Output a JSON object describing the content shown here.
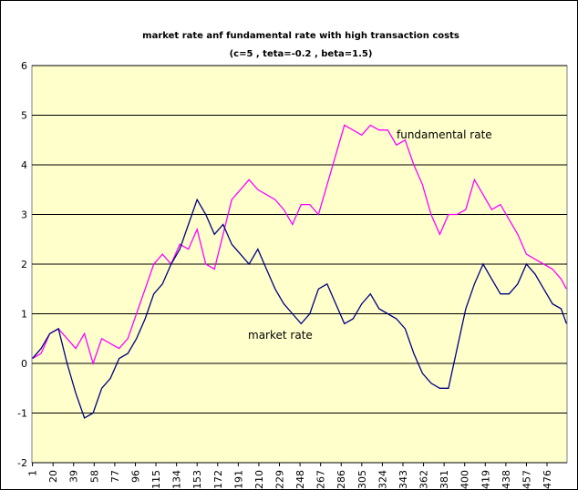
{
  "chart_data": {
    "type": "line",
    "title": "market rate anf fundamental rate with high transaction costs",
    "subtitle": "(c=5 , teta=-0.2 , beta=1.5)",
    "annotations": [
      "fundamental rate",
      "market rate"
    ],
    "x": [
      1,
      9,
      17,
      25,
      33,
      41,
      49,
      57,
      65,
      73,
      81,
      89,
      97,
      105,
      113,
      121,
      129,
      137,
      145,
      153,
      161,
      169,
      177,
      185,
      193,
      201,
      209,
      217,
      225,
      233,
      241,
      249,
      257,
      265,
      273,
      281,
      289,
      297,
      305,
      313,
      321,
      329,
      337,
      345,
      353,
      361,
      369,
      377,
      385,
      393,
      401,
      409,
      417,
      425,
      433,
      441,
      449,
      457,
      465,
      473,
      481,
      489,
      494
    ],
    "series": [
      {
        "name": "fundamental rate",
        "color": "#ff00ff",
        "values": [
          0.1,
          0.2,
          0.6,
          0.7,
          0.5,
          0.3,
          0.6,
          0.0,
          0.5,
          0.4,
          0.3,
          0.5,
          1.0,
          1.5,
          2.0,
          2.2,
          2.0,
          2.4,
          2.3,
          2.7,
          2.0,
          1.9,
          2.6,
          3.3,
          3.5,
          3.7,
          3.5,
          3.4,
          3.3,
          3.1,
          2.8,
          3.2,
          3.2,
          3.0,
          3.6,
          4.2,
          4.8,
          4.7,
          4.6,
          4.8,
          4.7,
          4.7,
          4.4,
          4.5,
          4.0,
          3.6,
          3.0,
          2.6,
          3.0,
          3.0,
          3.1,
          3.7,
          3.4,
          3.1,
          3.2,
          2.9,
          2.6,
          2.2,
          2.1,
          2.0,
          1.9,
          1.7,
          1.5
        ]
      },
      {
        "name": "market rate",
        "color": "#000080",
        "values": [
          0.1,
          0.3,
          0.6,
          0.7,
          0.0,
          -0.6,
          -1.1,
          -1.0,
          -0.5,
          -0.3,
          0.1,
          0.2,
          0.5,
          0.9,
          1.4,
          1.6,
          2.0,
          2.3,
          2.8,
          3.3,
          3.0,
          2.6,
          2.8,
          2.4,
          2.2,
          2.0,
          2.3,
          1.9,
          1.5,
          1.2,
          1.0,
          0.8,
          1.0,
          1.5,
          1.6,
          1.2,
          0.8,
          0.9,
          1.2,
          1.4,
          1.1,
          1.0,
          0.9,
          0.7,
          0.2,
          -0.2,
          -0.4,
          -0.5,
          -0.5,
          0.3,
          1.1,
          1.6,
          2.0,
          1.7,
          1.4,
          1.4,
          1.6,
          2.0,
          1.8,
          1.5,
          1.2,
          1.1,
          0.8
        ]
      }
    ],
    "xlim": [
      0.5,
      494.5
    ],
    "xticks": [
      1,
      20,
      39,
      58,
      77,
      96,
      115,
      134,
      153,
      172,
      191,
      210,
      229,
      248,
      267,
      286,
      305,
      324,
      343,
      362,
      381,
      400,
      419,
      438,
      457,
      476
    ],
    "ylim": [
      -2,
      6
    ],
    "yticks": [
      -2,
      -1,
      0,
      1,
      2,
      3,
      4,
      5,
      6
    ],
    "grid": true,
    "plot_background": "#ffffcc"
  }
}
